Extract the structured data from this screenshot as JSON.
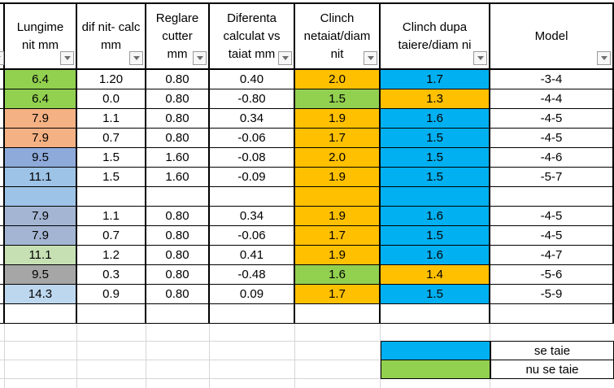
{
  "colors": {
    "white": "#FFFFFF",
    "green": "#92D050",
    "amber": "#FFC000",
    "cyan": "#00B0F0",
    "salmon": "#F4B183",
    "periwinkle": "#8EAADB",
    "lightblue": "#9DC3E6",
    "grayblue": "#A4B5D3",
    "lightgreen": "#C6E0B4",
    "gray": "#A6A6A6",
    "paleblue": "#BDD7EE",
    "marker_green": "#2E641E",
    "border": "#000000",
    "gridline": "#D6D6D6"
  },
  "table": {
    "headers": [
      {
        "id": "lungime",
        "lines": [
          "Lungime",
          "nit mm"
        ]
      },
      {
        "id": "dif-nit-calc",
        "lines": [
          "dif nit- calc",
          "mm"
        ]
      },
      {
        "id": "reglare-cutter",
        "lines": [
          "Reglare",
          "cutter",
          "mm"
        ]
      },
      {
        "id": "diferenta",
        "lines": [
          "Diferenta",
          "calculat vs",
          "taiat mm"
        ]
      },
      {
        "id": "clinch-netaiat",
        "lines": [
          "Clinch",
          "netaiat/diam",
          "nit"
        ]
      },
      {
        "id": "clinch-dupa",
        "lines": [
          "Clinch dupa",
          "taiere/diam ni"
        ]
      },
      {
        "id": "model",
        "lines": [
          "Model"
        ]
      }
    ],
    "rows": [
      {
        "values": [
          "6.4",
          "1.20",
          "0.80",
          "0.40",
          "2.0",
          "1.7",
          "-3-4"
        ],
        "bg": [
          "green",
          "white",
          "white",
          "white",
          "amber",
          "cyan",
          "white"
        ],
        "marker": true
      },
      {
        "values": [
          "6.4",
          "0.0",
          "0.80",
          "-0.80",
          "1.5",
          "1.3",
          "-4-4"
        ],
        "bg": [
          "green",
          "white",
          "white",
          "white",
          "green",
          "amber",
          "white"
        ],
        "marker": false
      },
      {
        "values": [
          "7.9",
          "1.1",
          "0.80",
          "0.34",
          "1.9",
          "1.6",
          "-4-5"
        ],
        "bg": [
          "salmon",
          "white",
          "white",
          "white",
          "amber",
          "cyan",
          "white"
        ],
        "marker": false
      },
      {
        "values": [
          "7.9",
          "0.7",
          "0.80",
          "-0.06",
          "1.7",
          "1.5",
          "-4-5"
        ],
        "bg": [
          "salmon",
          "white",
          "white",
          "white",
          "amber",
          "cyan",
          "white"
        ],
        "marker": false
      },
      {
        "values": [
          "9.5",
          "1.5",
          "1.60",
          "-0.08",
          "2.0",
          "1.5",
          "-4-6"
        ],
        "bg": [
          "periwinkle",
          "white",
          "white",
          "white",
          "amber",
          "cyan",
          "white"
        ],
        "marker": false
      },
      {
        "values": [
          "11.1",
          "1.5",
          "1.60",
          "-0.09",
          "1.9",
          "1.5",
          "-5-7"
        ],
        "bg": [
          "lightblue",
          "white",
          "white",
          "white",
          "amber",
          "cyan",
          "white"
        ],
        "marker": false
      },
      {
        "values": [
          "",
          "",
          "",
          "",
          "",
          "",
          ""
        ],
        "bg": [
          "lightblue",
          "white",
          "white",
          "white",
          "amber",
          "cyan",
          "white"
        ],
        "marker": false
      },
      {
        "values": [
          "7.9",
          "1.1",
          "0.80",
          "0.34",
          "1.9",
          "1.6",
          "-4-5"
        ],
        "bg": [
          "grayblue",
          "white",
          "white",
          "white",
          "amber",
          "cyan",
          "white"
        ],
        "marker": false
      },
      {
        "values": [
          "7.9",
          "0.7",
          "0.80",
          "-0.06",
          "1.7",
          "1.5",
          "-4-5"
        ],
        "bg": [
          "grayblue",
          "white",
          "white",
          "white",
          "amber",
          "cyan",
          "white"
        ],
        "marker": false
      },
      {
        "values": [
          "11.1",
          "1.2",
          "0.80",
          "0.41",
          "1.9",
          "1.6",
          "-4-7"
        ],
        "bg": [
          "lightgreen",
          "white",
          "white",
          "white",
          "amber",
          "cyan",
          "white"
        ],
        "marker": false
      },
      {
        "values": [
          "9.5",
          "0.3",
          "0.80",
          "-0.48",
          "1.6",
          "1.4",
          "-5-6"
        ],
        "bg": [
          "gray",
          "white",
          "white",
          "white",
          "green",
          "amber",
          "white"
        ],
        "marker": false
      },
      {
        "values": [
          "14.3",
          "0.9",
          "0.80",
          "0.09",
          "1.7",
          "1.5",
          "-5-9"
        ],
        "bg": [
          "paleblue",
          "white",
          "white",
          "white",
          "amber",
          "cyan",
          "white"
        ],
        "marker": false
      },
      {
        "values": [
          "",
          "",
          "",
          "",
          "",
          "",
          ""
        ],
        "bg": [
          "white",
          "white",
          "white",
          "white",
          "white",
          "white",
          "white"
        ],
        "marker": false
      }
    ]
  },
  "legend": {
    "items": [
      {
        "color_key": "cyan",
        "label": "se taie"
      },
      {
        "color_key": "green",
        "label": "nu se taie"
      }
    ]
  }
}
